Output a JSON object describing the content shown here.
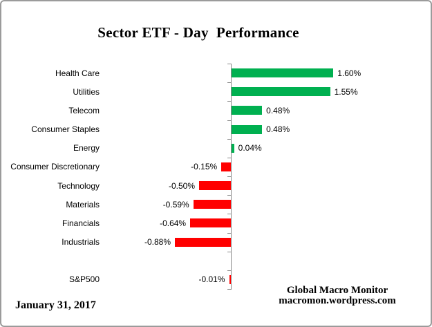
{
  "chart_data": {
    "type": "bar",
    "orientation": "horizontal",
    "title": "Sector ETF - Day  Performance",
    "categories": [
      "Health Care",
      "Utilities",
      "Telecom",
      "Consumer Staples",
      "Energy",
      "Consumer Discretionary",
      "Technology",
      "Materials",
      "Financials",
      "Industrials",
      "S&P500"
    ],
    "values": [
      1.6,
      1.55,
      0.48,
      0.48,
      0.04,
      -0.15,
      -0.5,
      -0.59,
      -0.64,
      -0.88,
      -0.01
    ],
    "value_labels": [
      "1.60%",
      "1.55%",
      "0.48%",
      "0.48%",
      "0.04%",
      "-0.15%",
      "-0.50%",
      "-0.59%",
      "-0.64%",
      "-0.88%",
      "-0.01%"
    ],
    "gap_before_category": "S&P500",
    "xlim": [
      -1.0,
      3.2
    ],
    "grid": false,
    "legend": false,
    "xlabel": "",
    "ylabel": "",
    "bar_colors": {
      "positive": "#00B050",
      "negative": "#FF0000"
    }
  },
  "footer": {
    "date": "January 31, 2017",
    "attribution_line1": "Global Macro Monitor",
    "attribution_line2": "macromon.wordpress.com"
  },
  "colors": {
    "axis": "#8a8a8a",
    "text": "#000000",
    "frame_border": "#9b9b9b"
  }
}
